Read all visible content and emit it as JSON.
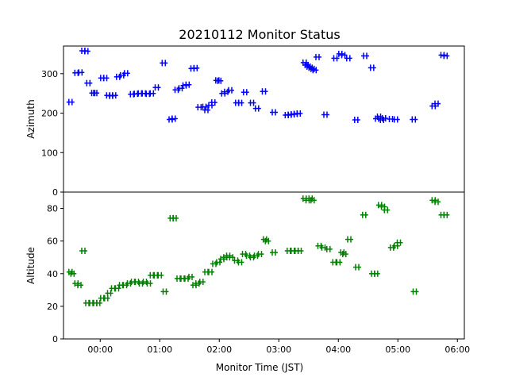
{
  "chart_data": {
    "type": "scatter",
    "title": "20210112 Monitor Status",
    "xlabel": "Monitor Time (JST)",
    "x_ticks": [
      "00:00",
      "01:00",
      "02:00",
      "03:00",
      "04:00",
      "05:00",
      "06:00"
    ],
    "xlim": [
      "-00:37",
      "06:07"
    ],
    "grid": false,
    "marker": "+ (thick, error-bar style)",
    "panels": [
      {
        "ylabel": "Azimuth",
        "ylim": [
          0,
          370
        ],
        "y_ticks": [
          0,
          100,
          200,
          300
        ],
        "color": "#0000ff",
        "points": [
          [
            "-00:30",
            228
          ],
          [
            "-00:24",
            302
          ],
          [
            "-00:20",
            303
          ],
          [
            "-00:17",
            358
          ],
          [
            "-00:14",
            357
          ],
          [
            "-00:12",
            276
          ],
          [
            "-00:07",
            251
          ],
          [
            "-00:05",
            251
          ],
          [
            "00:02",
            289
          ],
          [
            "00:05",
            289
          ],
          [
            "00:08",
            245
          ],
          [
            "00:11",
            244
          ],
          [
            "00:14",
            245
          ],
          [
            "00:18",
            292
          ],
          [
            "00:22",
            296
          ],
          [
            "00:26",
            301
          ],
          [
            "00:32",
            248
          ],
          [
            "00:36",
            249
          ],
          [
            "00:40",
            250
          ],
          [
            "00:44",
            250
          ],
          [
            "00:48",
            249
          ],
          [
            "00:52",
            250
          ],
          [
            "00:57",
            265
          ],
          [
            "01:04",
            327
          ],
          [
            "01:11",
            184
          ],
          [
            "01:14",
            186
          ],
          [
            "01:17",
            259
          ],
          [
            "01:21",
            263
          ],
          [
            "01:25",
            270
          ],
          [
            "01:28",
            272
          ],
          [
            "01:33",
            313
          ],
          [
            "01:36",
            314
          ],
          [
            "01:40",
            215
          ],
          [
            "01:45",
            216
          ],
          [
            "01:47",
            208
          ],
          [
            "01:51",
            220
          ],
          [
            "01:54",
            227
          ],
          [
            "01:58",
            283
          ],
          [
            "02:00",
            282
          ],
          [
            "02:04",
            250
          ],
          [
            "02:07",
            254
          ],
          [
            "02:11",
            258
          ],
          [
            "02:18",
            226
          ],
          [
            "02:21",
            226
          ],
          [
            "02:26",
            253
          ],
          [
            "02:33",
            226
          ],
          [
            "02:38",
            212
          ],
          [
            "02:45",
            255
          ],
          [
            "02:55",
            202
          ],
          [
            "03:08",
            195
          ],
          [
            "03:11",
            196
          ],
          [
            "03:14",
            197
          ],
          [
            "03:17",
            198
          ],
          [
            "03:20",
            199
          ],
          [
            "03:26",
            328
          ],
          [
            "03:28",
            322
          ],
          [
            "03:30",
            318
          ],
          [
            "03:32",
            315
          ],
          [
            "03:34",
            312
          ],
          [
            "03:36",
            309
          ],
          [
            "03:39",
            342
          ],
          [
            "03:47",
            196
          ],
          [
            "03:57",
            339
          ],
          [
            "04:02",
            350
          ],
          [
            "04:05",
            347
          ],
          [
            "04:10",
            339
          ],
          [
            "04:18",
            183
          ],
          [
            "04:27",
            345
          ],
          [
            "04:34",
            315
          ],
          [
            "04:39",
            186
          ],
          [
            "04:41",
            191
          ],
          [
            "04:44",
            183
          ],
          [
            "04:46",
            187
          ],
          [
            "04:53",
            185
          ],
          [
            "04:58",
            184
          ],
          [
            "05:16",
            184
          ],
          [
            "05:36",
            218
          ],
          [
            "05:39",
            224
          ],
          [
            "05:45",
            347
          ],
          [
            "05:48",
            345
          ]
        ]
      },
      {
        "ylabel": "Altitude",
        "ylim": [
          0,
          90
        ],
        "y_ticks": [
          0,
          20,
          40,
          60,
          80
        ],
        "color": "#008000",
        "points": [
          [
            "-00:30",
            41
          ],
          [
            "-00:28",
            40
          ],
          [
            "-00:24",
            34
          ],
          [
            "-00:21",
            33
          ],
          [
            "-00:17",
            54
          ],
          [
            "-00:13",
            22
          ],
          [
            "-00:09",
            22
          ],
          [
            "-00:05",
            22
          ],
          [
            "-00:02",
            22
          ],
          [
            "00:02",
            25
          ],
          [
            "00:06",
            25
          ],
          [
            "00:09",
            28
          ],
          [
            "00:13",
            31
          ],
          [
            "00:17",
            31
          ],
          [
            "00:21",
            33
          ],
          [
            "00:25",
            33
          ],
          [
            "00:29",
            34
          ],
          [
            "00:33",
            35
          ],
          [
            "00:37",
            35
          ],
          [
            "00:41",
            34
          ],
          [
            "00:45",
            35
          ],
          [
            "00:49",
            34
          ],
          [
            "00:52",
            39
          ],
          [
            "00:56",
            39
          ],
          [
            "01:00",
            39
          ],
          [
            "01:05",
            29
          ],
          [
            "01:12",
            74
          ],
          [
            "01:15",
            74
          ],
          [
            "01:19",
            37
          ],
          [
            "01:23",
            37
          ],
          [
            "01:27",
            37
          ],
          [
            "01:31",
            38
          ],
          [
            "01:35",
            33
          ],
          [
            "01:38",
            34
          ],
          [
            "01:42",
            35
          ],
          [
            "01:47",
            41
          ],
          [
            "01:51",
            41
          ],
          [
            "01:55",
            46
          ],
          [
            "01:59",
            47
          ],
          [
            "02:03",
            49
          ],
          [
            "02:06",
            50
          ],
          [
            "02:09",
            51
          ],
          [
            "02:12",
            50
          ],
          [
            "02:17",
            48
          ],
          [
            "02:21",
            47
          ],
          [
            "02:25",
            52
          ],
          [
            "02:29",
            51
          ],
          [
            "02:33",
            50
          ],
          [
            "02:37",
            51
          ],
          [
            "02:41",
            52
          ],
          [
            "02:46",
            61
          ],
          [
            "02:48",
            60
          ],
          [
            "02:55",
            53
          ],
          [
            "03:10",
            54
          ],
          [
            "03:14",
            54
          ],
          [
            "03:18",
            54
          ],
          [
            "03:21",
            54
          ],
          [
            "03:26",
            86
          ],
          [
            "03:29",
            85
          ],
          [
            "03:32",
            86
          ],
          [
            "03:34",
            85
          ],
          [
            "03:41",
            57
          ],
          [
            "03:45",
            56
          ],
          [
            "03:50",
            55
          ],
          [
            "03:56",
            47
          ],
          [
            "04:00",
            47
          ],
          [
            "04:04",
            53
          ],
          [
            "04:06",
            52
          ],
          [
            "04:11",
            61
          ],
          [
            "04:19",
            44
          ],
          [
            "04:26",
            76
          ],
          [
            "04:35",
            40
          ],
          [
            "04:38",
            40
          ],
          [
            "04:42",
            82
          ],
          [
            "04:45",
            81
          ],
          [
            "04:48",
            79
          ],
          [
            "04:54",
            56
          ],
          [
            "04:58",
            57
          ],
          [
            "05:01",
            59
          ],
          [
            "05:17",
            29
          ],
          [
            "05:36",
            85
          ],
          [
            "05:39",
            84
          ],
          [
            "05:45",
            76
          ],
          [
            "05:48",
            76
          ]
        ]
      }
    ]
  }
}
